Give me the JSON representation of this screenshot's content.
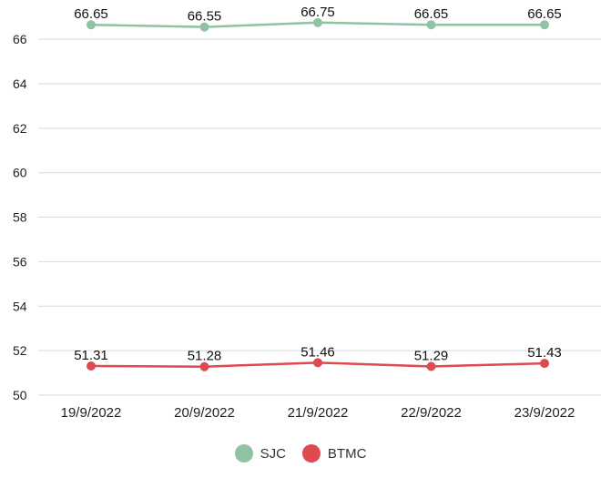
{
  "colors": {
    "sjc": "#8fc3a2",
    "btmc": "#dd4a4f",
    "grid": "#d9d9d9",
    "text": "#222222"
  },
  "chart_data": {
    "type": "line",
    "title": "",
    "xlabel": "",
    "ylabel": "",
    "categories": [
      "19/9/2022",
      "20/9/2022",
      "21/9/2022",
      "22/9/2022",
      "23/9/2022"
    ],
    "ylim": [
      50,
      66.7
    ],
    "yticks": [
      "50",
      "52",
      "54",
      "56",
      "58",
      "60",
      "62",
      "64",
      "66"
    ],
    "series": [
      {
        "name": "SJC",
        "color": "#8fc3a2",
        "values": [
          66.65,
          66.55,
          66.75,
          66.65,
          66.65
        ],
        "labels": [
          "66.65",
          "66.55",
          "66.75",
          "66.65",
          "66.65"
        ]
      },
      {
        "name": "BTMC",
        "color": "#dd4a4f",
        "values": [
          51.31,
          51.28,
          51.46,
          51.29,
          51.43
        ],
        "labels": [
          "51.31",
          "51.28",
          "51.46",
          "51.29",
          "51.43"
        ]
      }
    ],
    "legend": "bottom-center"
  }
}
